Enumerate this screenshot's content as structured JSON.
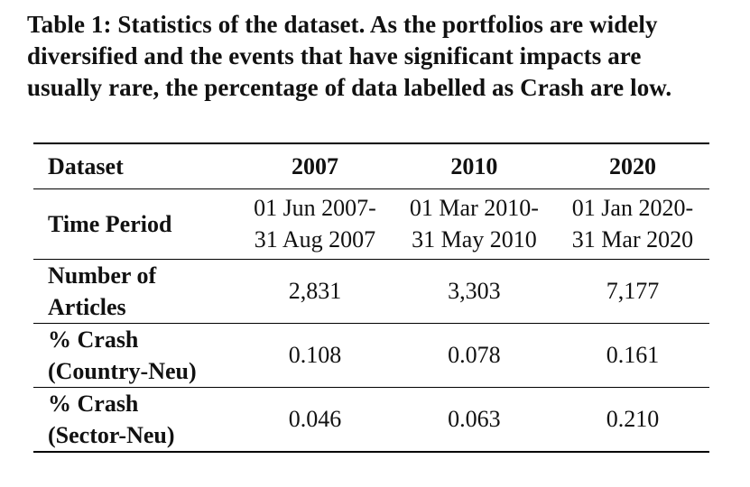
{
  "caption": {
    "lines": [
      "Table 1: Statistics of the dataset. As the portfolios are widely",
      "diversified and the events that have significant impacts are",
      "usually rare, the percentage of data labelled as Crash are low."
    ]
  },
  "table": {
    "header": {
      "label": "Dataset",
      "columns": [
        "2007",
        "2010",
        "2020"
      ]
    },
    "rows": [
      {
        "label_lines": [
          "Time Period"
        ],
        "values": [
          [
            "01 Jun 2007-",
            "31 Aug 2007"
          ],
          [
            "01 Mar 2010-",
            "31 May 2010"
          ],
          [
            "01 Jan 2020-",
            "31 Mar 2020"
          ]
        ]
      },
      {
        "label_lines": [
          "Number of",
          "Articles"
        ],
        "values": [
          [
            "2,831"
          ],
          [
            "3,303"
          ],
          [
            "7,177"
          ]
        ]
      },
      {
        "label_lines": [
          "% Crash",
          "(Country-Neu)"
        ],
        "values": [
          [
            "0.108"
          ],
          [
            "0.078"
          ],
          [
            "0.161"
          ]
        ]
      },
      {
        "label_lines": [
          "% Crash",
          "(Sector-Neu)"
        ],
        "values": [
          [
            "0.046"
          ],
          [
            "0.063"
          ],
          [
            "0.210"
          ]
        ]
      }
    ]
  }
}
